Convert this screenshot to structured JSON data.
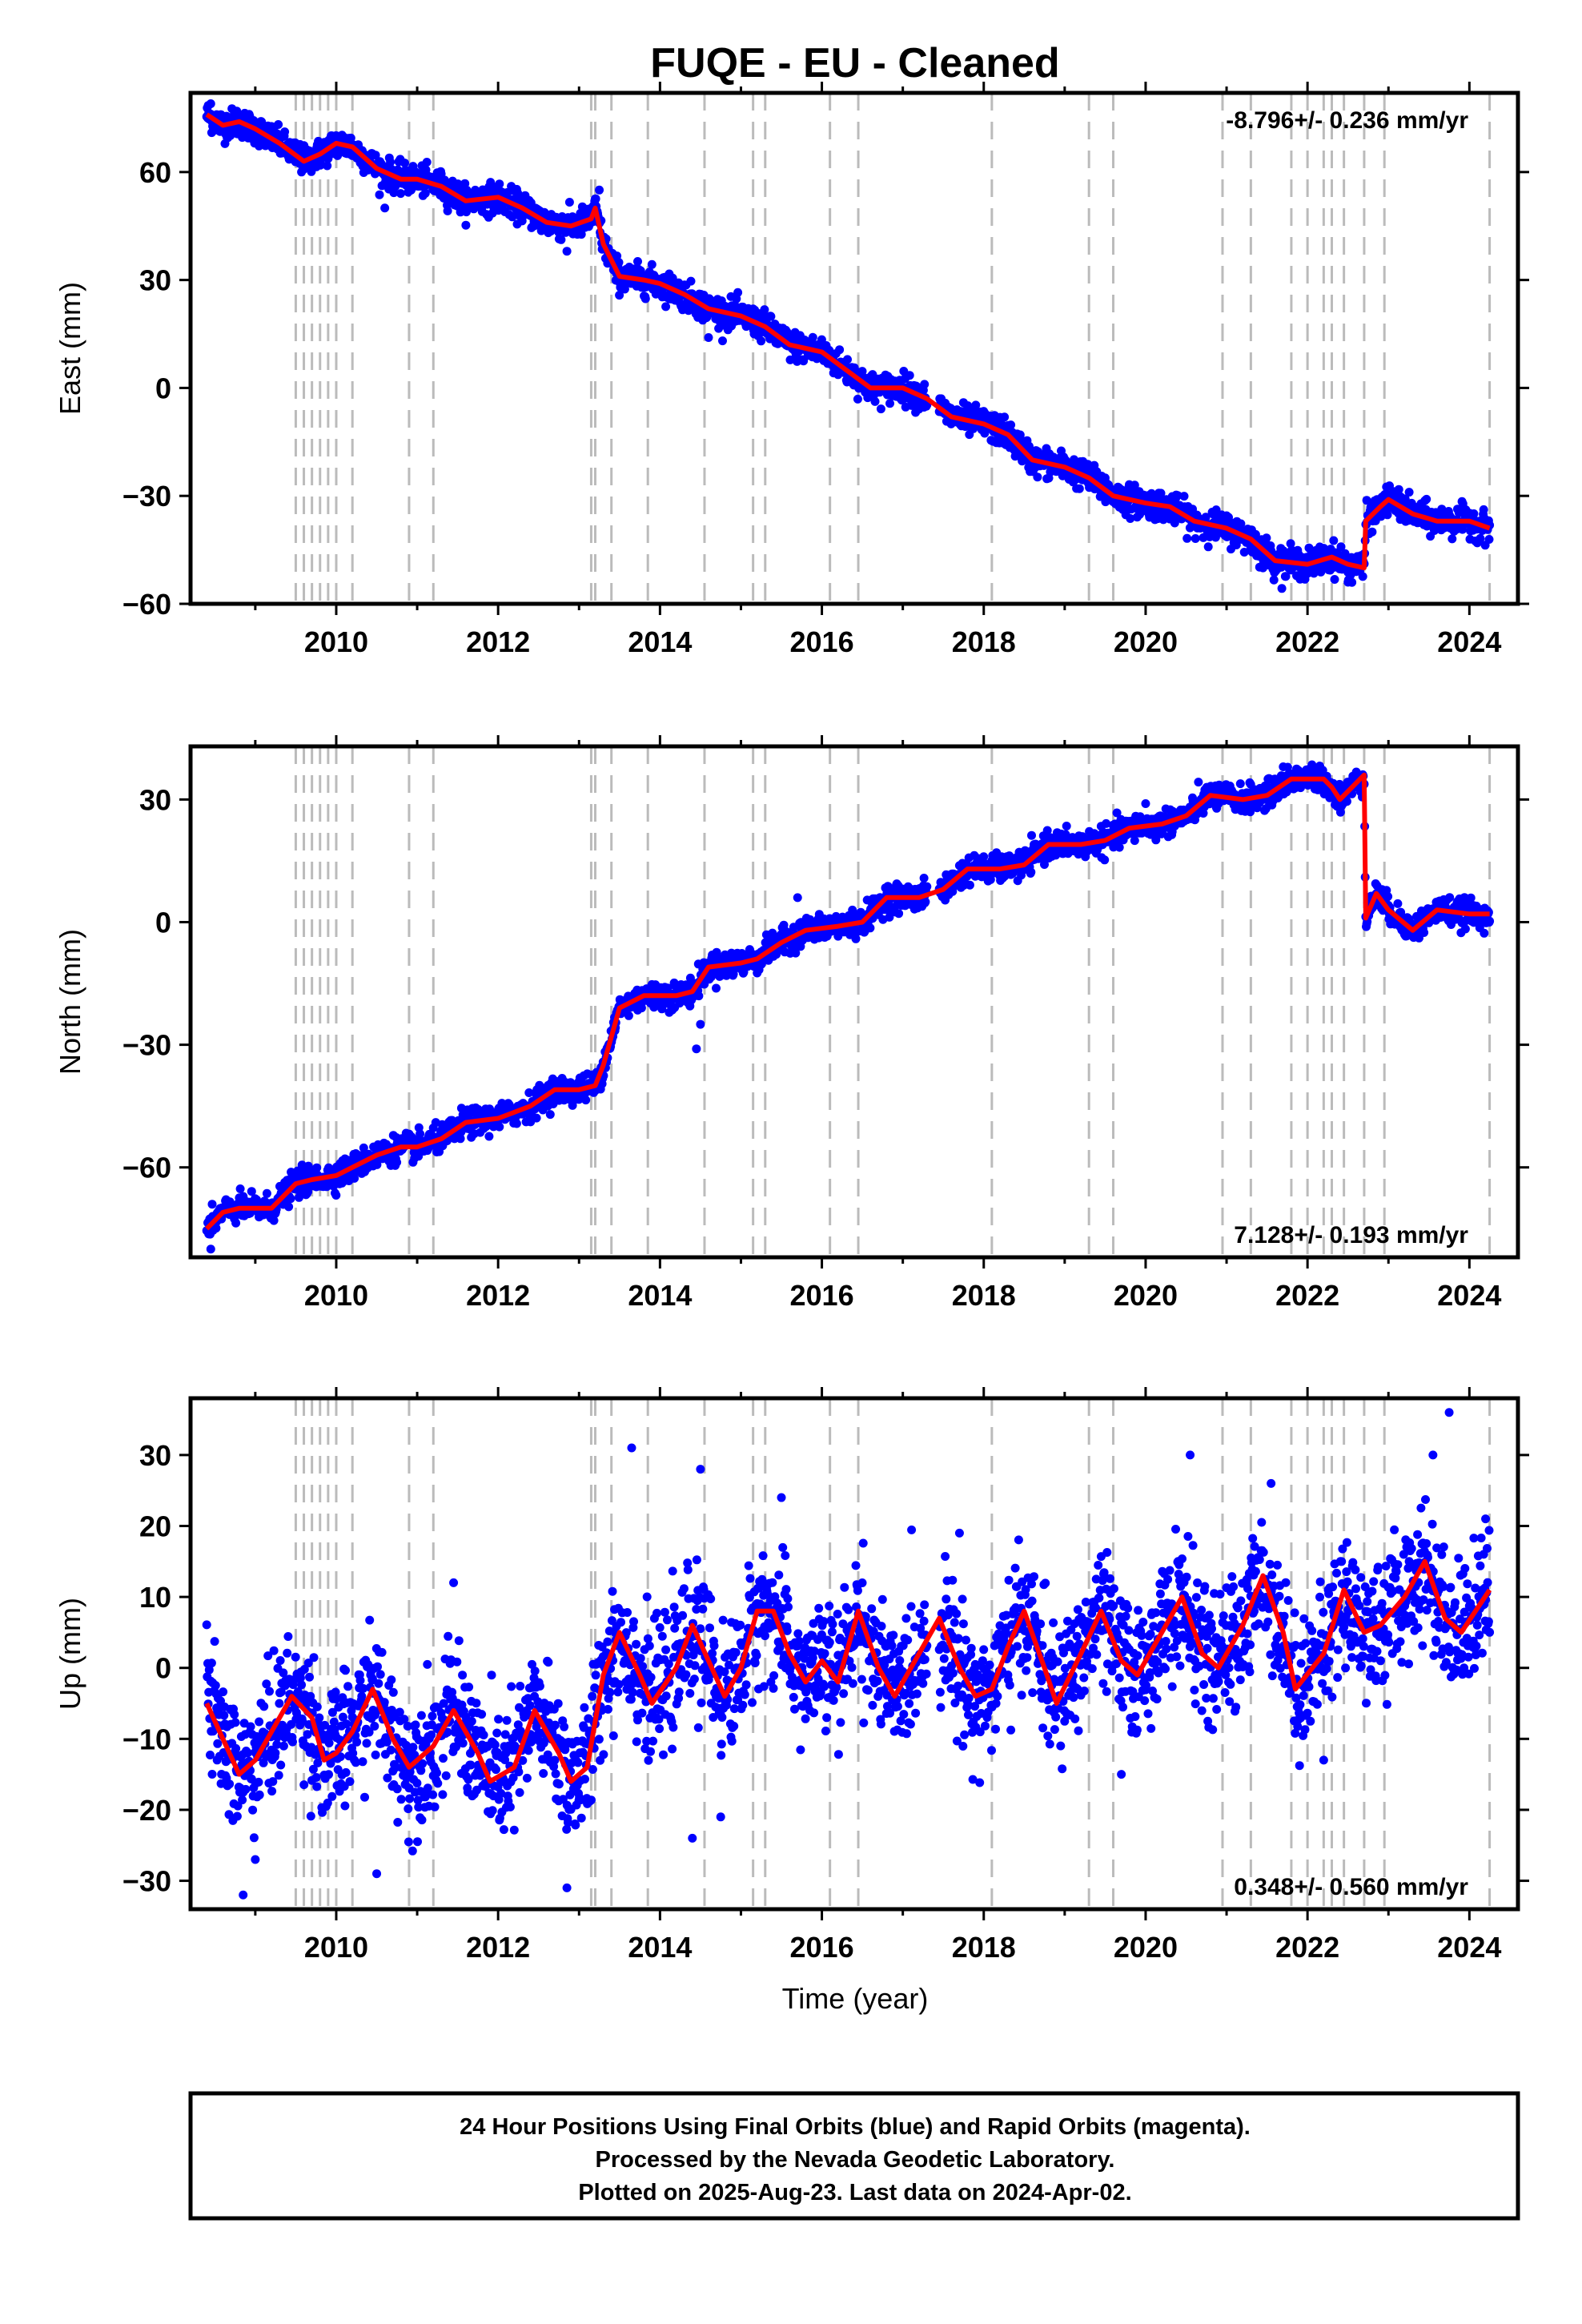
{
  "title": "FUQE  - EU - Cleaned",
  "xlabel": "Time (year)",
  "footer": {
    "line1": "24 Hour Positions Using Final Orbits (blue) and Rapid Orbits (magenta).",
    "line2": "Processed by the Nevada Geodetic Laboratory.",
    "line3": "Plotted on 2025-Aug-23. Last data on 2024-Apr-02."
  },
  "colors": {
    "points": "#0000ff",
    "model": "#ff0000",
    "steps": "#bbbbbb",
    "axes": "#000000"
  },
  "chart_data": [
    {
      "type": "scatter",
      "ylabel": "East (mm)",
      "rate": "-8.796+/- 0.236 mm/yr",
      "xlim": [
        2008.2,
        2024.6
      ],
      "ylim": [
        -60,
        82
      ],
      "xticks": [
        2010,
        2012,
        2014,
        2016,
        2018,
        2020,
        2022,
        2024
      ],
      "yticks": [
        60,
        30,
        0,
        -30,
        -60
      ],
      "step_epochs": [
        2009.5,
        2009.6,
        2009.7,
        2009.8,
        2009.9,
        2010.0,
        2010.2,
        2010.9,
        2011.2,
        2013.15,
        2013.2,
        2013.4,
        2013.85,
        2014.55,
        2015.15,
        2015.3,
        2016.1,
        2016.45,
        2018.1,
        2019.3,
        2019.6,
        2020.95,
        2021.3,
        2021.8,
        2022.0,
        2022.2,
        2022.3,
        2022.45,
        2022.7,
        2022.95,
        2024.25
      ],
      "model": {
        "x": [
          2008.4,
          2008.6,
          2008.8,
          2009.0,
          2009.3,
          2009.6,
          2009.8,
          2010.0,
          2010.2,
          2010.5,
          2010.8,
          2011.0,
          2011.3,
          2011.6,
          2012.0,
          2012.3,
          2012.6,
          2012.9,
          2013.15,
          2013.2,
          2013.3,
          2013.5,
          2013.8,
          2014.0,
          2014.3,
          2014.6,
          2015.0,
          2015.3,
          2015.6,
          2016.0,
          2016.3,
          2016.6,
          2017.0,
          2017.3,
          2017.6,
          2018.0,
          2018.3,
          2018.6,
          2019.0,
          2019.3,
          2019.6,
          2020.0,
          2020.3,
          2020.6,
          2021.0,
          2021.3,
          2021.6,
          2022.0,
          2022.3,
          2022.5,
          2022.7,
          2022.72,
          2022.9,
          2023.0,
          2023.3,
          2023.6,
          2024.0,
          2024.25
        ],
        "y": [
          76,
          73,
          74,
          72,
          68,
          63,
          65,
          68,
          67,
          61,
          58,
          58,
          56,
          52,
          53,
          50,
          46,
          45,
          47,
          50,
          40,
          31,
          30,
          29,
          26,
          22,
          20,
          17,
          12,
          10,
          5,
          0,
          0,
          -3,
          -8,
          -10,
          -13,
          -20,
          -22,
          -25,
          -30,
          -32,
          -33,
          -37,
          -39,
          -42,
          -48,
          -49,
          -47,
          -49,
          -50,
          -37,
          -33,
          -31,
          -35,
          -37,
          -37,
          -39
        ]
      },
      "points": {
        "scatter_sd": 2,
        "outliers": [
          [
            2008.45,
            79
          ],
          [
            2010.6,
            50
          ],
          [
            2012.85,
            38
          ],
          [
            2013.25,
            55
          ],
          [
            2014.6,
            14
          ],
          [
            2016.35,
            3
          ],
          [
            2019.5,
            -25
          ],
          [
            2021.45,
            -50
          ],
          [
            2022.5,
            -54
          ]
        ]
      }
    },
    {
      "type": "scatter",
      "ylabel": "North (mm)",
      "rate": "7.128+/- 0.193 mm/yr",
      "xlim": [
        2008.2,
        2024.6
      ],
      "ylim": [
        -82,
        43
      ],
      "xticks": [
        2010,
        2012,
        2014,
        2016,
        2018,
        2020,
        2022,
        2024
      ],
      "yticks": [
        30,
        0,
        -30,
        -60
      ],
      "step_epochs": [
        2009.5,
        2009.6,
        2009.7,
        2009.8,
        2009.9,
        2010.0,
        2010.2,
        2010.9,
        2011.2,
        2013.15,
        2013.2,
        2013.4,
        2013.85,
        2014.55,
        2015.15,
        2015.3,
        2016.1,
        2016.45,
        2018.1,
        2019.3,
        2019.6,
        2020.95,
        2021.3,
        2021.8,
        2022.0,
        2022.2,
        2022.3,
        2022.45,
        2022.7,
        2022.95,
        2024.25
      ],
      "model": {
        "x": [
          2008.4,
          2008.6,
          2008.8,
          2009.2,
          2009.5,
          2009.7,
          2010.0,
          2010.2,
          2010.5,
          2010.8,
          2011.0,
          2011.3,
          2011.6,
          2012.0,
          2012.4,
          2012.7,
          2013.0,
          2013.2,
          2013.3,
          2013.4,
          2013.5,
          2013.8,
          2014.2,
          2014.4,
          2014.6,
          2015.0,
          2015.2,
          2015.5,
          2015.8,
          2016.2,
          2016.5,
          2016.8,
          2017.2,
          2017.5,
          2017.8,
          2018.2,
          2018.5,
          2018.8,
          2019.2,
          2019.5,
          2019.8,
          2020.2,
          2020.5,
          2020.8,
          2021.2,
          2021.5,
          2021.8,
          2022.2,
          2022.3,
          2022.4,
          2022.7,
          2022.72,
          2022.85,
          2023.0,
          2023.3,
          2023.6,
          2024.0,
          2024.25
        ],
        "y": [
          -75,
          -71,
          -70,
          -70,
          -64,
          -63,
          -62,
          -60,
          -57,
          -55,
          -55,
          -53,
          -49,
          -48,
          -45,
          -41,
          -41,
          -40,
          -35,
          -28,
          -21,
          -18,
          -18,
          -17,
          -11,
          -10,
          -9,
          -5,
          -2,
          -1,
          0,
          6,
          6,
          8,
          13,
          13,
          14,
          19,
          19,
          20,
          23,
          24,
          26,
          31,
          30,
          31,
          35,
          35,
          33,
          30,
          36,
          1,
          7,
          3,
          -2,
          3,
          2,
          2
        ]
      },
      "points": {
        "scatter_sd": 1.6,
        "outliers": [
          [
            2008.45,
            -80
          ],
          [
            2014.45,
            -31
          ],
          [
            2014.5,
            -25
          ],
          [
            2015.7,
            6
          ],
          [
            2020.0,
            29
          ],
          [
            2021.7,
            38
          ]
        ]
      }
    },
    {
      "type": "scatter",
      "ylabel": "Up (mm)",
      "rate": "0.348+/- 0.560 mm/yr",
      "xlim": [
        2008.2,
        2024.6
      ],
      "ylim": [
        -34,
        38
      ],
      "xticks": [
        2010,
        2012,
        2014,
        2016,
        2018,
        2020,
        2022,
        2024
      ],
      "yticks": [
        30,
        20,
        10,
        0,
        -10,
        -20,
        -30
      ],
      "step_epochs": [
        2009.5,
        2009.6,
        2009.7,
        2009.8,
        2009.9,
        2010.0,
        2010.2,
        2010.9,
        2011.2,
        2013.15,
        2013.2,
        2013.4,
        2013.85,
        2014.55,
        2015.15,
        2015.3,
        2016.1,
        2016.45,
        2018.1,
        2019.3,
        2019.6,
        2020.95,
        2021.3,
        2021.8,
        2022.0,
        2022.2,
        2022.3,
        2022.45,
        2022.7,
        2022.95,
        2024.25
      ],
      "model": {
        "x": [
          2008.4,
          2008.6,
          2008.8,
          2009.0,
          2009.2,
          2009.45,
          2009.7,
          2009.85,
          2010.0,
          2010.2,
          2010.45,
          2010.7,
          2010.9,
          2011.2,
          2011.45,
          2011.75,
          2011.9,
          2012.2,
          2012.45,
          2012.75,
          2012.9,
          2013.1,
          2013.3,
          2013.5,
          2013.75,
          2013.9,
          2014.2,
          2014.4,
          2014.6,
          2014.8,
          2015.0,
          2015.2,
          2015.4,
          2015.6,
          2015.8,
          2016.0,
          2016.2,
          2016.45,
          2016.7,
          2016.9,
          2017.2,
          2017.45,
          2017.7,
          2017.9,
          2018.1,
          2018.3,
          2018.5,
          2018.75,
          2018.9,
          2019.2,
          2019.45,
          2019.7,
          2019.9,
          2020.2,
          2020.45,
          2020.7,
          2020.9,
          2021.2,
          2021.45,
          2021.7,
          2021.85,
          2022.2,
          2022.45,
          2022.7,
          2022.9,
          2023.2,
          2023.45,
          2023.7,
          2023.9,
          2024.25
        ],
        "y": [
          -5,
          -10,
          -15,
          -13,
          -9,
          -4,
          -7,
          -13,
          -12,
          -9,
          -3,
          -10,
          -14,
          -11,
          -6,
          -12,
          -16,
          -14,
          -6,
          -12,
          -16,
          -14,
          -1,
          5,
          -1,
          -5,
          0,
          6,
          1,
          -4,
          0,
          8,
          8,
          2,
          -2,
          1,
          -2,
          8,
          0,
          -4,
          2,
          7,
          0,
          -4,
          -3,
          3,
          8,
          0,
          -5,
          2,
          8,
          1,
          -1,
          5,
          10,
          2,
          0,
          6,
          13,
          5,
          -3,
          2,
          11,
          5,
          6,
          10,
          15,
          7,
          5,
          11
        ]
      },
      "points": {
        "scatter_sd": 4.5,
        "outliers": [
          [
            2008.85,
            -32
          ],
          [
            2009.0,
            -27
          ],
          [
            2010.5,
            -29
          ],
          [
            2011.45,
            12
          ],
          [
            2012.85,
            -31
          ],
          [
            2013.65,
            31
          ],
          [
            2014.5,
            28
          ],
          [
            2014.75,
            -21
          ],
          [
            2014.4,
            -24
          ],
          [
            2015.5,
            24
          ],
          [
            2017.7,
            19
          ],
          [
            2019.7,
            -15
          ],
          [
            2020.55,
            30
          ],
          [
            2021.55,
            26
          ],
          [
            2023.55,
            30
          ],
          [
            2023.75,
            36
          ],
          [
            2024.2,
            21
          ],
          [
            2022.2,
            -13
          ]
        ]
      }
    }
  ]
}
